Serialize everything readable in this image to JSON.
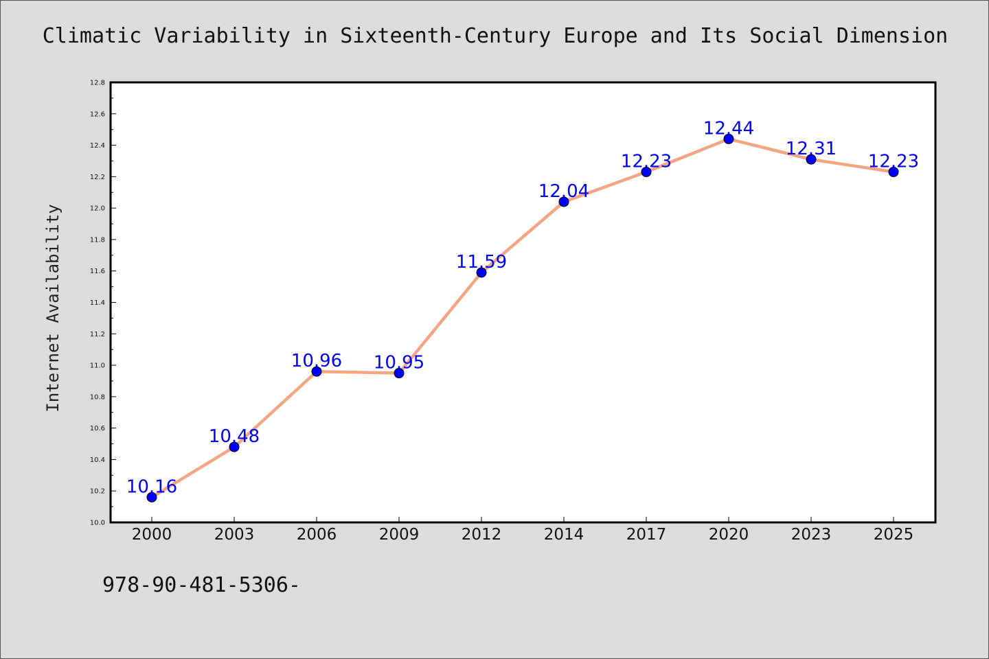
{
  "chart_data": {
    "type": "line",
    "title": "Climatic Variability in Sixteenth-Century Europe and Its Social Dimension",
    "xlabel": "",
    "ylabel": "Internet Availability",
    "categories": [
      "2000",
      "2003",
      "2006",
      "2009",
      "2012",
      "2014",
      "2017",
      "2020",
      "2023",
      "2025"
    ],
    "series": [
      {
        "values": [
          10.16,
          10.48,
          10.96,
          10.95,
          11.59,
          12.04,
          12.23,
          12.44,
          12.31,
          12.23
        ],
        "data_labels": [
          "10.16",
          "10.48",
          "10.96",
          "10.95",
          "11.59",
          "12.04",
          "12.23",
          "12.44",
          "12.31",
          "12.23"
        ],
        "line_color": "#f4a582",
        "marker_color": "#0000ff"
      }
    ],
    "ylim": [
      10.0,
      12.8
    ],
    "yticks": [
      "10.0",
      "10.2",
      "10.4",
      "10.6",
      "10.8",
      "11.0",
      "11.2",
      "11.4",
      "11.6",
      "11.8",
      "12.0",
      "12.2",
      "12.4",
      "12.6",
      "12.8"
    ],
    "grid": false,
    "legend": "none"
  },
  "footer_text": "978-90-481-5306-"
}
